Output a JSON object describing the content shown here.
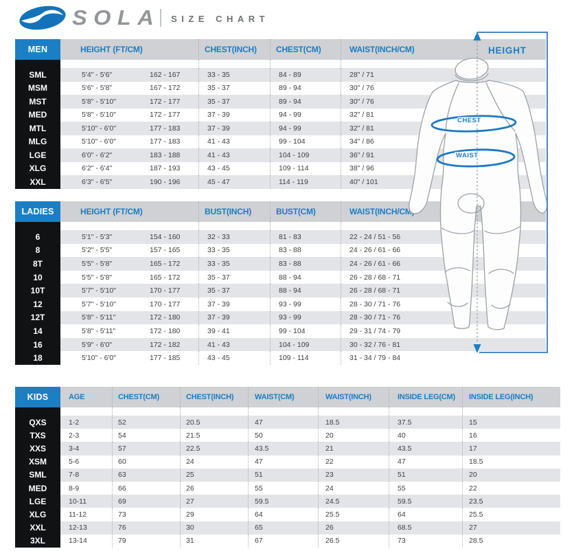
{
  "logo": {
    "brand": "SOLA",
    "subtitle": "SIZE CHART"
  },
  "figure_labels": {
    "height": "HEIGHT",
    "chest": "CHEST",
    "waist": "WAIST"
  },
  "colors": {
    "accent_blue": "#1c7fc4",
    "header_text_blue": "#1a7dc5",
    "header_bar_gray": "#cfd1d4",
    "row_stripe_gray": "#e3e4e7",
    "size_column_black": "#101214",
    "frame_blue": "#4a86c8",
    "logo_gray": "#939598"
  },
  "chart_data": [
    {
      "type": "table",
      "tab": "MEN",
      "headers": [
        "HEIGHT (FT/CM)",
        "CHEST(INCH)",
        "CHEST(CM)",
        "WAIST(INCH/CM)"
      ],
      "rows": [
        {
          "size": "SML",
          "cells": [
            "5'4\" - 5'6\"",
            "162 - 167",
            "33 - 35",
            "84 - 89",
            "28\" / 71"
          ]
        },
        {
          "size": "MSM",
          "cells": [
            "5'6\" - 5'8\"",
            "167 - 172",
            "35 - 37",
            "89 - 94",
            "30\" / 76"
          ]
        },
        {
          "size": "MST",
          "cells": [
            "5'8\" - 5'10\"",
            "172 - 177",
            "35 - 37",
            "89 - 94",
            "30\" / 76"
          ]
        },
        {
          "size": "MED",
          "cells": [
            "5'8\" - 5'10\"",
            "172 - 177",
            "37 - 39",
            "94 - 99",
            "32\" / 81"
          ]
        },
        {
          "size": "MTL",
          "cells": [
            "5'10\" - 6'0\"",
            "177 - 183",
            "37 - 39",
            "94 - 99",
            "32\" / 81"
          ]
        },
        {
          "size": "MLG",
          "cells": [
            "5'10\" - 6'0\"",
            "177 - 183",
            "41 - 43",
            "99 - 104",
            "34\" / 86"
          ]
        },
        {
          "size": "LGE",
          "cells": [
            "6'0\" - 6'2\"",
            "183 - 188",
            "41 - 43",
            "104 - 109",
            "36\" / 91"
          ]
        },
        {
          "size": "XLG",
          "cells": [
            "6'2\" - 6'4\"",
            "187 - 193",
            "43 - 45",
            "109 - 114",
            "38\" / 96"
          ]
        },
        {
          "size": "XXL",
          "cells": [
            "6'3\" - 6'5\"",
            "190 - 196",
            "45 - 47",
            "114 - 119",
            "40\" / 101"
          ]
        }
      ]
    },
    {
      "type": "table",
      "tab": "LADIES",
      "headers": [
        "HEIGHT (FT/CM)",
        "BUST(INCH)",
        "BUST(CM)",
        "WAIST(INCH/CM)"
      ],
      "rows": [
        {
          "size": "6",
          "cells": [
            "5'1\" - 5'3\"",
            "154 - 160",
            "32 - 33",
            "81 - 83",
            "22 - 24 / 51 - 56"
          ]
        },
        {
          "size": "8",
          "cells": [
            "5'2\" - 5'5\"",
            "157 - 165",
            "33 - 35",
            "83 - 88",
            "24 - 26 / 61 - 66"
          ]
        },
        {
          "size": "8T",
          "cells": [
            "5'5\" - 5'8\"",
            "165 - 172",
            "33 - 35",
            "83 - 88",
            "24 - 26 / 61 - 66"
          ]
        },
        {
          "size": "10",
          "cells": [
            "5'5\" - 5'8\"",
            "165 - 172",
            "35 - 37",
            "88 - 94",
            "26 - 28 / 68 - 71"
          ]
        },
        {
          "size": "10T",
          "cells": [
            "5'7\" - 5'10\"",
            "170 - 177",
            "35 - 37",
            "88 - 94",
            "26 - 28 / 68 - 71"
          ]
        },
        {
          "size": "12",
          "cells": [
            "5'7\" - 5'10\"",
            "170 - 177",
            "37 - 39",
            "93 - 99",
            "28 - 30 / 71 - 76"
          ]
        },
        {
          "size": "12T",
          "cells": [
            "5'8\" - 5'11\"",
            "172 - 180",
            "37 - 39",
            "93 - 99",
            "28 - 30 / 71 - 76"
          ]
        },
        {
          "size": "14",
          "cells": [
            "5'8\" - 5'11\"",
            "172 - 180",
            "39 - 41",
            "99 - 104",
            "29 - 31 / 74 - 79"
          ]
        },
        {
          "size": "16",
          "cells": [
            "5'9\" - 6'0\"",
            "172 - 182",
            "41 - 43",
            "104 - 109",
            "30 - 32 / 76 - 81"
          ]
        },
        {
          "size": "18",
          "cells": [
            "5'10\" - 6'0\"",
            "177 - 185",
            "43 - 45",
            "109 - 114",
            "31 - 34 / 79 - 84"
          ]
        }
      ]
    },
    {
      "type": "table",
      "tab": "KIDS",
      "headers": [
        "AGE",
        "CHEST(CM)",
        "CHEST(INCH)",
        "WAIST(CM)",
        "WAIST(INCH)",
        "INSIDE LEG(CM)",
        "INSIDE LEG(INCH)"
      ],
      "rows": [
        {
          "size": "QXS",
          "cells": [
            "1-2",
            "52",
            "20.5",
            "47",
            "18.5",
            "37.5",
            "15"
          ]
        },
        {
          "size": "TXS",
          "cells": [
            "2-3",
            "54",
            "21.5",
            "50",
            "20",
            "40",
            "16"
          ]
        },
        {
          "size": "XXS",
          "cells": [
            "3-4",
            "57",
            "22.5",
            "43.5",
            "21",
            "43.5",
            "17"
          ]
        },
        {
          "size": "XSM",
          "cells": [
            "5-6",
            "60",
            "24",
            "47",
            "22",
            "47",
            "18.5"
          ]
        },
        {
          "size": "SML",
          "cells": [
            "7-8",
            "63",
            "25",
            "51",
            "23",
            "51",
            "20"
          ]
        },
        {
          "size": "MED",
          "cells": [
            "8-9",
            "66",
            "26",
            "55",
            "24",
            "55",
            "22"
          ]
        },
        {
          "size": "LGE",
          "cells": [
            "10-11",
            "69",
            "27",
            "59.5",
            "24.5",
            "59.5",
            "23.5"
          ]
        },
        {
          "size": "XLG",
          "cells": [
            "11-12",
            "73",
            "29",
            "64",
            "25.5",
            "64",
            "25.5"
          ]
        },
        {
          "size": "XXL",
          "cells": [
            "12-13",
            "76",
            "30",
            "65",
            "26",
            "68.5",
            "27"
          ]
        },
        {
          "size": "3XL",
          "cells": [
            "13-14",
            "79",
            "31",
            "67",
            "26.5",
            "73",
            "28.5"
          ]
        }
      ]
    }
  ]
}
